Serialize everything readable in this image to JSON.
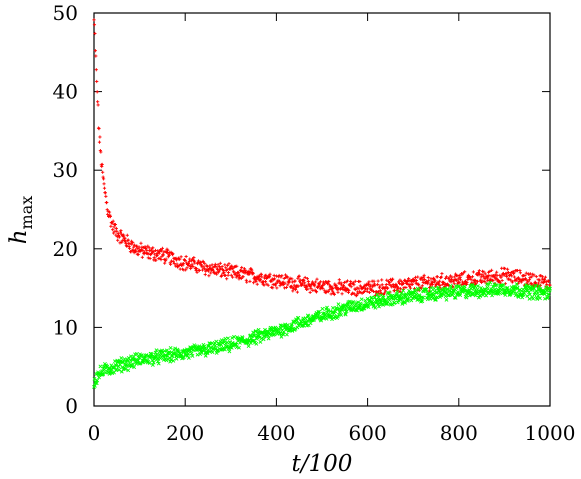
{
  "chart_data": {
    "type": "scatter",
    "title": "",
    "xlabel": "t/100",
    "ylabel": "h_max",
    "xlim": [
      0,
      1000
    ],
    "ylim": [
      0,
      50
    ],
    "x_ticks": [
      "0",
      "200",
      "400",
      "600",
      "800",
      "1000"
    ],
    "y_ticks": [
      "0",
      "10",
      "20",
      "30",
      "40",
      "50"
    ],
    "grid": false,
    "legend": "none",
    "series": [
      {
        "color": "#ff0000",
        "marker": "plus",
        "points": [
          [
            0,
            49
          ],
          [
            2,
            47
          ],
          [
            4,
            44
          ],
          [
            6,
            41
          ],
          [
            8,
            39
          ],
          [
            10,
            36
          ],
          [
            12,
            34
          ],
          [
            15,
            32
          ],
          [
            18,
            30
          ],
          [
            22,
            28
          ],
          [
            26,
            26.5
          ],
          [
            30,
            25
          ],
          [
            35,
            24
          ],
          [
            40,
            23
          ],
          [
            50,
            22
          ],
          [
            60,
            21.5
          ],
          [
            70,
            21
          ],
          [
            80,
            20.5
          ],
          [
            90,
            20
          ],
          [
            100,
            19.8
          ],
          [
            120,
            19.5
          ],
          [
            150,
            19.2
          ],
          [
            180,
            18.6
          ],
          [
            200,
            18.2
          ],
          [
            250,
            17.5
          ],
          [
            300,
            17
          ],
          [
            350,
            16.5
          ],
          [
            400,
            16
          ],
          [
            450,
            15.5
          ],
          [
            500,
            15.2
          ],
          [
            550,
            15
          ],
          [
            600,
            15
          ],
          [
            650,
            15.2
          ],
          [
            700,
            15.5
          ],
          [
            750,
            15.8
          ],
          [
            800,
            16
          ],
          [
            850,
            16.3
          ],
          [
            900,
            16.6
          ],
          [
            950,
            16.2
          ],
          [
            1000,
            15.5
          ]
        ]
      },
      {
        "color": "#00ff00",
        "marker": "cross",
        "points": [
          [
            0,
            3
          ],
          [
            5,
            3.6
          ],
          [
            10,
            4
          ],
          [
            20,
            4.4
          ],
          [
            30,
            4.7
          ],
          [
            50,
            5.1
          ],
          [
            75,
            5.5
          ],
          [
            100,
            5.9
          ],
          [
            150,
            6.3
          ],
          [
            200,
            6.7
          ],
          [
            250,
            7.2
          ],
          [
            300,
            7.8
          ],
          [
            350,
            8.6
          ],
          [
            400,
            9.5
          ],
          [
            450,
            10.5
          ],
          [
            500,
            11.5
          ],
          [
            550,
            12.4
          ],
          [
            600,
            13.1
          ],
          [
            650,
            13.6
          ],
          [
            700,
            14
          ],
          [
            750,
            14.3
          ],
          [
            800,
            14.5
          ],
          [
            850,
            14.7
          ],
          [
            900,
            14.9
          ],
          [
            950,
            14.6
          ],
          [
            1000,
            14.3
          ]
        ]
      }
    ]
  }
}
